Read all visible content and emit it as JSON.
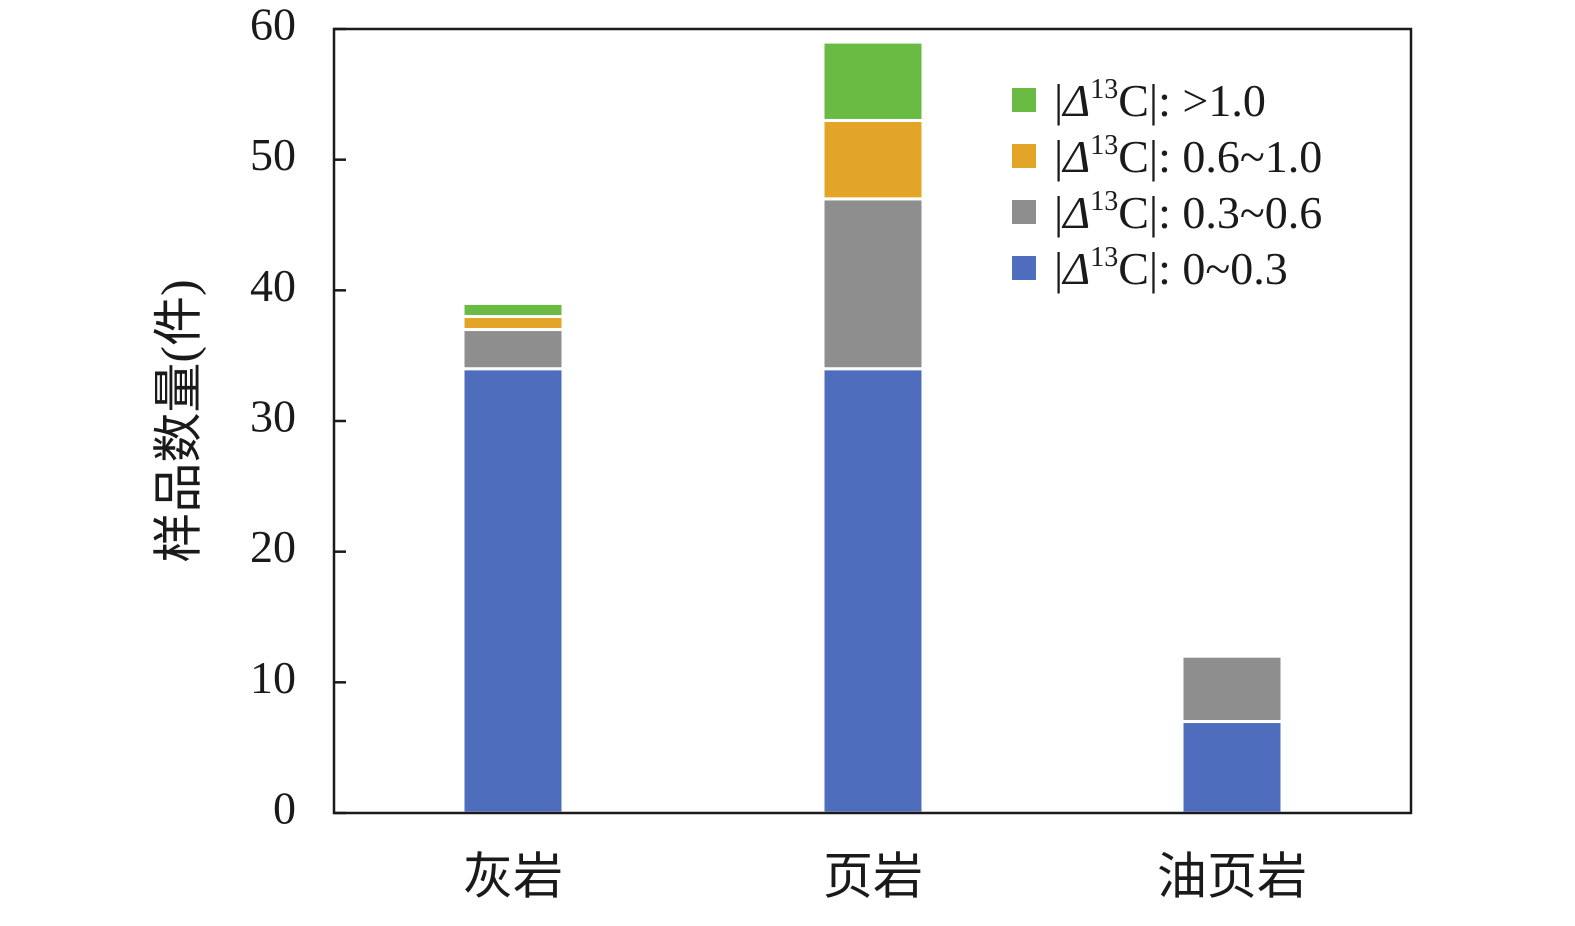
{
  "chart_data": {
    "type": "bar",
    "stacked": true,
    "title": "",
    "xlabel": "",
    "ylabel": "样品数量(件)",
    "ylim": [
      0,
      60
    ],
    "yticks": [
      0,
      10,
      20,
      30,
      40,
      50,
      60
    ],
    "grid": false,
    "legend_position": "top-right",
    "categories": [
      "灰岩",
      "页岩",
      "油页岩"
    ],
    "series": [
      {
        "name": "|Δ13C|: 0~0.3",
        "legend_prefix": "|",
        "legend_sym": "Δ",
        "legend_sup": "13",
        "legend_rest": "C|: 0~0.3",
        "color": "#4e6dbd",
        "values": [
          34,
          34,
          7
        ]
      },
      {
        "name": "|Δ13C|: 0.3~0.6",
        "legend_prefix": "|",
        "legend_sym": "Δ",
        "legend_sup": "13",
        "legend_rest": "C|: 0.3~0.6",
        "color": "#8e8e8e",
        "values": [
          3,
          13,
          5
        ]
      },
      {
        "name": "|Δ13C|: 0.6~1.0",
        "legend_prefix": "|",
        "legend_sym": "Δ",
        "legend_sup": "13",
        "legend_rest": "C|: 0.6~1.0",
        "color": "#e2a527",
        "values": [
          1,
          6,
          0
        ]
      },
      {
        "name": "|Δ13C|: >1.0",
        "legend_prefix": "|",
        "legend_sym": "Δ",
        "legend_sup": "13",
        "legend_rest": "C|: >1.0",
        "color": "#6abb44",
        "values": [
          1,
          6,
          0
        ]
      }
    ]
  }
}
